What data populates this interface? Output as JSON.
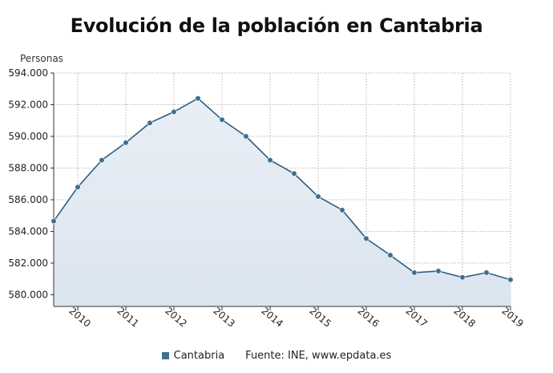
{
  "chart_data": {
    "type": "area",
    "title": "Evolución de la población en Cantabria",
    "ylabel": "Personas",
    "xlabel": "",
    "ylim": [
      580000,
      594000
    ],
    "yticks": [
      580000,
      582000,
      584000,
      586000,
      588000,
      590000,
      592000,
      594000
    ],
    "ytick_labels": [
      "580.000",
      "582.000",
      "584.000",
      "586.000",
      "588.000",
      "590.000",
      "592.000",
      "594.000"
    ],
    "xticks": [
      2010,
      2011,
      2012,
      2013,
      2014,
      2015,
      2016,
      2017,
      2018,
      2019
    ],
    "xtick_labels": [
      "2010",
      "2011",
      "2012",
      "2013",
      "2014",
      "2015",
      "2016",
      "2017",
      "2018",
      "2019"
    ],
    "xlim": [
      2009.5,
      2019
    ],
    "grid": true,
    "legend_position": "bottom",
    "series": [
      {
        "name": "Cantabria",
        "x": [
          2009.5,
          2010,
          2010.5,
          2011,
          2011.5,
          2012,
          2012.5,
          2013,
          2013.5,
          2014,
          2014.5,
          2015,
          2015.5,
          2016,
          2016.5,
          2017,
          2017.5,
          2018,
          2018.5,
          2019
        ],
        "values": [
          584650,
          586800,
          588500,
          589600,
          590850,
          591550,
          592400,
          591050,
          590000,
          588500,
          587650,
          586200,
          585350,
          583550,
          582500,
          581400,
          581500,
          581100,
          581400,
          580950
        ]
      }
    ],
    "source": "Fuente: INE, www.epdata.es"
  },
  "colors": {
    "line": "#2f5d7c",
    "marker": "#3d6f92",
    "fill_top": "#e9eef5",
    "fill_bottom": "#dbe5ef",
    "grid": "#b5b5b5",
    "axis": "#333333",
    "legend_swatch": "#3d6f92"
  }
}
